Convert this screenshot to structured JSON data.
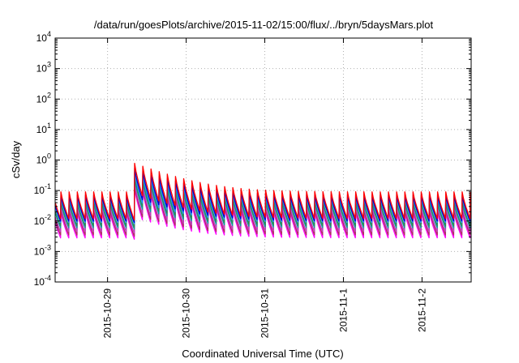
{
  "chart_data": {
    "type": "line",
    "title": "/data/run/goesPlots/archive/2015-11-02/15:00/flux/../bryn/5daysMars.plot",
    "xlabel": "Coordinated Universal Time (UTC)",
    "ylabel": "cSv/day",
    "yscale": "log",
    "ylim": [
      0.0001,
      10000
    ],
    "y_ticks": [
      {
        "base": "10",
        "exp": "-4",
        "value": 0.0001
      },
      {
        "base": "10",
        "exp": "-3",
        "value": 0.001
      },
      {
        "base": "10",
        "exp": "-2",
        "value": 0.01
      },
      {
        "base": "10",
        "exp": "-1",
        "value": 0.1
      },
      {
        "base": "10",
        "exp": "0",
        "value": 1
      },
      {
        "base": "10",
        "exp": "1",
        "value": 10
      },
      {
        "base": "10",
        "exp": "2",
        "value": 100
      },
      {
        "base": "10",
        "exp": "3",
        "value": 1000
      },
      {
        "base": "10",
        "exp": "4",
        "value": 10000
      }
    ],
    "xlim": [
      "2015-10-28 08:00",
      "2015-11-02 15:00"
    ],
    "x_ticks": [
      {
        "label": "2015-10-29",
        "value": "2015-10-29 00:00"
      },
      {
        "label": "2015-10-30",
        "value": "2015-10-30 00:00"
      },
      {
        "label": "2015-10-31",
        "value": "2015-10-31 00:00"
      },
      {
        "label": "2015-11-1",
        "value": "2015-11-01 00:00"
      },
      {
        "label": "2015-11-2",
        "value": "2015-11-02 00:00"
      }
    ],
    "grid": true,
    "legend": "none",
    "sawtooth_period_hours": 2.5,
    "event_onset": "2015-10-29 08:00",
    "series": [
      {
        "color": "#ff00ff",
        "peak_baseline": 0.02,
        "trough_baseline": 0.0028,
        "peak_event": 0.12
      },
      {
        "color": "#b03060",
        "peak_baseline": 0.025,
        "trough_baseline": 0.0035,
        "peak_event": 0.15
      },
      {
        "color": "#c040c0",
        "peak_baseline": 0.03,
        "trough_baseline": 0.0045,
        "peak_event": 0.18
      },
      {
        "color": "#00a0a0",
        "peak_baseline": 0.04,
        "trough_baseline": 0.006,
        "peak_event": 0.25
      },
      {
        "color": "#2e8b57",
        "peak_baseline": 0.045,
        "trough_baseline": 0.007,
        "peak_event": 0.3
      },
      {
        "color": "#1e90ff",
        "peak_baseline": 0.06,
        "trough_baseline": 0.009,
        "peak_event": 0.4
      },
      {
        "color": "#0000cd",
        "peak_baseline": 0.07,
        "trough_baseline": 0.01,
        "peak_event": 0.55
      },
      {
        "color": "#ff0000",
        "peak_baseline": 0.09,
        "trough_baseline": 0.012,
        "peak_event": 0.8
      }
    ]
  }
}
